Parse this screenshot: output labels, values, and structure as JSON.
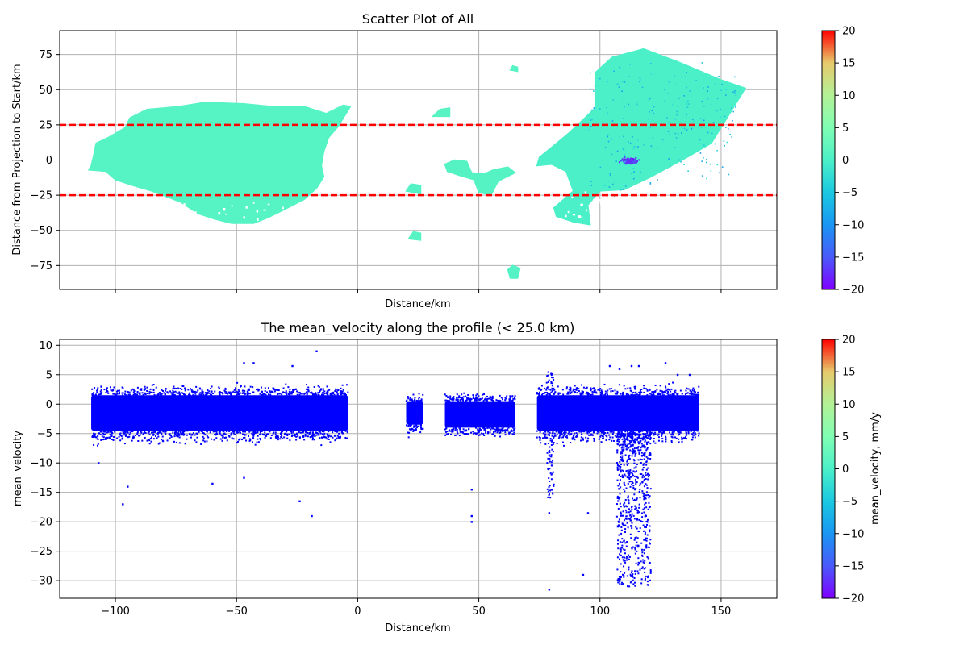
{
  "colors": {
    "points_bottom": "#0000ff",
    "ref_line": "#ff0000",
    "grid": "#b0b0b0"
  },
  "chart_data": [
    {
      "type": "scatter",
      "title": "Scatter Plot of All",
      "xlabel": "Distance/km",
      "ylabel": "Distance from Projection to Start/km",
      "xlim": [
        -123,
        173
      ],
      "ylim": [
        -92,
        92
      ],
      "grid": true,
      "x_ticks": [
        -100,
        -50,
        0,
        50,
        100,
        150
      ],
      "x_tick_labels_shown": false,
      "y_ticks": [
        75,
        50,
        25,
        0,
        -25,
        -50,
        -75
      ],
      "y_tick_labels": [
        "75",
        "50",
        "25",
        "0",
        "−25",
        "−50",
        "−75"
      ],
      "color_by": "mean_velocity",
      "hlines": [
        {
          "y": 25,
          "color": "#ff0000",
          "style": "dashed"
        },
        {
          "y": -25,
          "color": "#ff0000",
          "style": "dashed"
        }
      ],
      "clusters": [
        {
          "name": "west block",
          "x_range": [
            -111,
            -2
          ],
          "y_range": [
            -45,
            42
          ],
          "value": 1
        },
        {
          "name": "islet A",
          "x_range": [
            31,
            38
          ],
          "y_range": [
            30,
            37
          ],
          "value": 1
        },
        {
          "name": "islet B",
          "x_range": [
            20,
            26
          ],
          "y_range": [
            -24,
            -17
          ],
          "value": 1
        },
        {
          "name": "islet C",
          "x_range": [
            21,
            26
          ],
          "y_range": [
            -57,
            -51
          ],
          "value": 1
        },
        {
          "name": "islet D",
          "x_range": [
            36,
            68
          ],
          "y_range": [
            -25,
            0
          ],
          "value": 1
        },
        {
          "name": "islet E",
          "x_range": [
            62,
            66
          ],
          "y_range": [
            63,
            67
          ],
          "value": 1
        },
        {
          "name": "islet F",
          "x_range": [
            62,
            67
          ],
          "y_range": [
            -84,
            -75
          ],
          "value": 1
        },
        {
          "name": "east block",
          "x_range": [
            73,
            160
          ],
          "y_range": [
            -47,
            82
          ],
          "value": 0
        },
        {
          "name": "subsidence zone",
          "x_center": 112,
          "y_center": 0,
          "value": -18
        }
      ],
      "colorbar": {
        "label": "",
        "min": -20,
        "max": 20,
        "ticks": [
          "20",
          "15",
          "10",
          "5",
          "0",
          "−5",
          "−10",
          "−15",
          "−20"
        ],
        "colormap": "rainbow"
      }
    },
    {
      "type": "scatter",
      "title": "The mean_velocity along the profile (< 25.0 km)",
      "xlabel": "Distance/km",
      "ylabel": "mean_velocity",
      "xlim": [
        -123,
        173
      ],
      "ylim": [
        -33,
        11
      ],
      "grid": true,
      "x_ticks": [
        -100,
        -50,
        0,
        50,
        100,
        150
      ],
      "x_tick_labels": [
        "−100",
        "−50",
        "0",
        "50",
        "100",
        "150"
      ],
      "y_ticks": [
        10,
        5,
        0,
        -5,
        -10,
        -15,
        -20,
        -25,
        -30
      ],
      "y_tick_labels": [
        "10",
        "5",
        "0",
        "−5",
        "−10",
        "−15",
        "−20",
        "−25",
        "−30"
      ],
      "series": [
        {
          "segments": [
            {
              "x_range": [
                -110,
                -4
              ],
              "core_y": [
                -4.5,
                1.5
              ],
              "spread": 2.5
            },
            {
              "x_range": [
                20,
                27
              ],
              "core_y": [
                -3.5,
                0.5
              ],
              "spread": 2
            },
            {
              "x_range": [
                36,
                65
              ],
              "core_y": [
                -4,
                0.5
              ],
              "spread": 2
            },
            {
              "x_range": [
                74,
                141
              ],
              "core_y": [
                -4.5,
                1.5
              ],
              "spread": 2.5
            }
          ],
          "outliers": [
            {
              "x": -97,
              "y": -17
            },
            {
              "x": -95,
              "y": -14
            },
            {
              "x": -107,
              "y": -10
            },
            {
              "x": -60,
              "y": -13.5
            },
            {
              "x": -47,
              "y": -12.5
            },
            {
              "x": -47,
              "y": 7
            },
            {
              "x": -43,
              "y": 7
            },
            {
              "x": -27,
              "y": 6.5
            },
            {
              "x": -24,
              "y": -16.5
            },
            {
              "x": -19,
              "y": -19
            },
            {
              "x": -17,
              "y": 9
            },
            {
              "x": 47,
              "y": -14.5
            },
            {
              "x": 47,
              "y": -19
            },
            {
              "x": 47,
              "y": -20
            },
            {
              "x": 79,
              "y": -31.5
            },
            {
              "x": 79,
              "y": -18.5
            },
            {
              "x": 93,
              "y": -29
            },
            {
              "x": 95,
              "y": -18.5
            },
            {
              "x": 104,
              "y": 6.5
            },
            {
              "x": 108,
              "y": 6
            },
            {
              "x": 113,
              "y": 6.5
            },
            {
              "x": 116,
              "y": 6.5
            },
            {
              "x": 127,
              "y": 7
            },
            {
              "x": 132,
              "y": 5
            },
            {
              "x": 137,
              "y": 5
            },
            {
              "x": 138,
              "y": -6
            }
          ],
          "subsidence": {
            "x_range": [
              107,
              121
            ],
            "y_range": [
              -31,
              -5
            ]
          }
        }
      ],
      "colorbar": {
        "label": "mean_velocity, mm/y",
        "min": -20,
        "max": 20,
        "ticks": [
          "20",
          "15",
          "10",
          "5",
          "0",
          "−5",
          "−10",
          "−15",
          "−20"
        ],
        "colormap": "rainbow"
      }
    }
  ]
}
